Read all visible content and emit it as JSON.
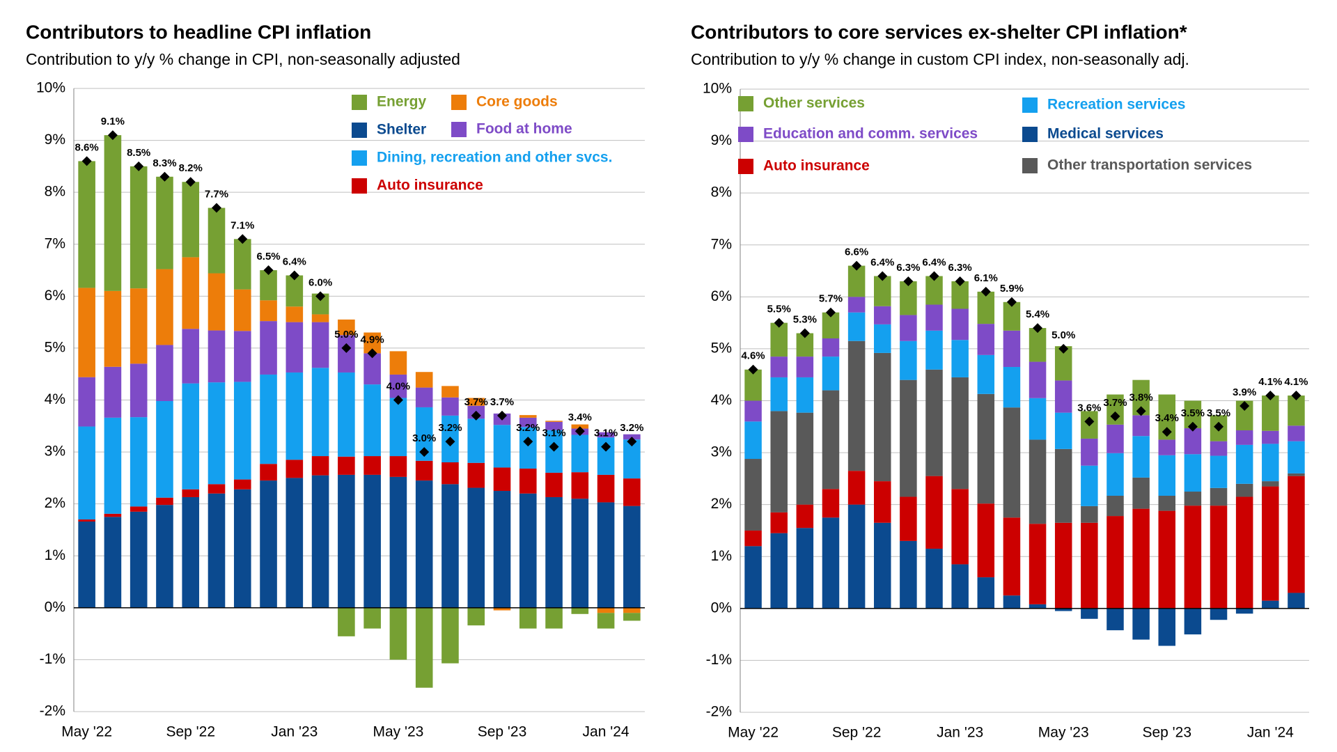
{
  "chart_data": [
    {
      "type": "stacked_bar",
      "title": "Contributors to headline CPI inflation",
      "subtitle": "Contribution to y/y % change in CPI, non-seasonally adjusted",
      "categories": [
        "May '22",
        null,
        null,
        null,
        "Sep '22",
        null,
        null,
        null,
        "Jan '23",
        null,
        null,
        null,
        "May '23",
        null,
        null,
        null,
        "Sep '23",
        null,
        null,
        null,
        "Jan '24",
        null
      ],
      "ylim": [
        -2,
        10
      ],
      "yticks": [
        {
          "value": -2,
          "label": "-2%"
        },
        {
          "value": -1,
          "label": "-1%"
        },
        {
          "value": 0,
          "label": "0%"
        },
        {
          "value": 1,
          "label": "1%"
        },
        {
          "value": 2,
          "label": "2%"
        },
        {
          "value": 3,
          "label": "3%"
        },
        {
          "value": 4,
          "label": "4%"
        },
        {
          "value": 5,
          "label": "5%"
        },
        {
          "value": 6,
          "label": "6%"
        },
        {
          "value": 7,
          "label": "7%"
        },
        {
          "value": 8,
          "label": "8%"
        },
        {
          "value": 9,
          "label": "9%"
        },
        {
          "value": 10,
          "label": "10%"
        }
      ],
      "grid": true,
      "series": [
        {
          "name": "Shelter",
          "color": "#0b4a8f",
          "values": [
            1.66,
            1.75,
            1.85,
            1.98,
            2.13,
            2.2,
            2.28,
            2.45,
            2.5,
            2.55,
            2.56,
            2.56,
            2.52,
            2.45,
            2.38,
            2.31,
            2.25,
            2.2,
            2.13,
            2.1,
            2.03,
            1.96
          ]
        },
        {
          "name": "Auto insurance",
          "color": "#cc0000",
          "values": [
            0.04,
            0.06,
            0.1,
            0.14,
            0.15,
            0.18,
            0.19,
            0.32,
            0.35,
            0.37,
            0.35,
            0.36,
            0.4,
            0.38,
            0.42,
            0.48,
            0.45,
            0.48,
            0.47,
            0.51,
            0.53,
            0.53
          ]
        },
        {
          "name": "Dining, recreation and other svcs.",
          "color": "#14a0ef",
          "values": [
            1.79,
            1.85,
            1.72,
            1.86,
            2.04,
            1.96,
            1.88,
            1.72,
            1.68,
            1.7,
            1.62,
            1.38,
            1.12,
            1.03,
            0.9,
            0.85,
            0.82,
            0.8,
            0.82,
            0.72,
            0.72,
            0.75
          ]
        },
        {
          "name": "Food at home",
          "color": "#7e4bc7",
          "values": [
            0.95,
            0.98,
            1.03,
            1.08,
            1.05,
            1.0,
            0.98,
            1.03,
            0.97,
            0.88,
            0.72,
            0.6,
            0.45,
            0.38,
            0.35,
            0.25,
            0.22,
            0.18,
            0.16,
            0.12,
            0.1,
            0.1
          ]
        },
        {
          "name": "Core goods",
          "color": "#ed7d0a",
          "values": [
            1.72,
            1.46,
            1.45,
            1.46,
            1.38,
            1.1,
            0.8,
            0.4,
            0.3,
            0.15,
            0.3,
            0.4,
            0.45,
            0.3,
            0.22,
            0.15,
            -0.05,
            0.05,
            0.02,
            0.08,
            -0.1,
            -0.1
          ]
        },
        {
          "name": "Energy",
          "color": "#76a033",
          "values": [
            2.44,
            3.0,
            2.35,
            1.78,
            1.45,
            1.26,
            0.97,
            0.58,
            0.6,
            0.4,
            -0.55,
            -0.4,
            -1.0,
            -1.54,
            -1.07,
            -0.34,
            0.0,
            -0.4,
            -0.4,
            -0.12,
            -0.3,
            -0.15
          ]
        }
      ],
      "markers": {
        "values": [
          8.6,
          9.1,
          8.5,
          8.3,
          8.2,
          7.7,
          7.1,
          6.5,
          6.4,
          6.0,
          5.0,
          4.9,
          4.0,
          3.0,
          3.2,
          3.7,
          3.7,
          3.2,
          3.1,
          3.4,
          3.1,
          3.2
        ],
        "value_labels": [
          "8.6%",
          "9.1%",
          "8.5%",
          "8.3%",
          "8.2%",
          "7.7%",
          "7.1%",
          "6.5%",
          "6.4%",
          "6.0%",
          "5.0%",
          "4.9%",
          "4.0%",
          "3.0%",
          "3.2%",
          "3.7%",
          "3.7%",
          "3.2%",
          "3.1%",
          "3.4%",
          "3.1%",
          "3.2%"
        ]
      }
    },
    {
      "type": "stacked_bar",
      "title": "Contributors to core services ex-shelter CPI inflation*",
      "subtitle": "Contribution to y/y % change in custom CPI index, non-seasonally adj.",
      "categories": [
        "May '22",
        null,
        null,
        null,
        "Sep '22",
        null,
        null,
        null,
        "Jan '23",
        null,
        null,
        null,
        "May '23",
        null,
        null,
        null,
        "Sep '23",
        null,
        null,
        null,
        "Jan '24",
        null
      ],
      "ylim": [
        -2,
        10
      ],
      "yticks": [
        {
          "value": -2,
          "label": "-2%"
        },
        {
          "value": -1,
          "label": "-1%"
        },
        {
          "value": 0,
          "label": "0%"
        },
        {
          "value": 1,
          "label": "1%"
        },
        {
          "value": 2,
          "label": "2%"
        },
        {
          "value": 3,
          "label": "3%"
        },
        {
          "value": 4,
          "label": "4%"
        },
        {
          "value": 5,
          "label": "5%"
        },
        {
          "value": 6,
          "label": "6%"
        },
        {
          "value": 7,
          "label": "7%"
        },
        {
          "value": 8,
          "label": "8%"
        },
        {
          "value": 9,
          "label": "9%"
        },
        {
          "value": 10,
          "label": "10%"
        }
      ],
      "grid": true,
      "series": [
        {
          "name": "Medical services",
          "color": "#0b4a8f",
          "values": [
            1.2,
            1.45,
            1.55,
            1.75,
            2.0,
            1.65,
            1.3,
            1.15,
            0.85,
            0.6,
            0.25,
            0.08,
            -0.05,
            -0.2,
            -0.42,
            -0.6,
            -0.72,
            -0.5,
            -0.22,
            -0.1,
            0.15,
            0.3
          ]
        },
        {
          "name": "Auto insurance",
          "color": "#cc0000",
          "values": [
            0.3,
            0.4,
            0.45,
            0.55,
            0.65,
            0.8,
            0.85,
            1.4,
            1.45,
            1.42,
            1.5,
            1.55,
            1.65,
            1.65,
            1.78,
            1.92,
            1.88,
            1.98,
            1.98,
            2.15,
            2.2,
            2.25
          ]
        },
        {
          "name": "Other transportation services",
          "color": "#595959",
          "values": [
            1.38,
            1.95,
            1.77,
            1.9,
            2.5,
            2.47,
            2.25,
            2.05,
            2.15,
            2.11,
            2.12,
            1.62,
            1.42,
            0.32,
            0.39,
            0.6,
            0.29,
            0.27,
            0.34,
            0.25,
            0.1,
            0.05
          ]
        },
        {
          "name": "Recreation services",
          "color": "#14a0ef",
          "values": [
            0.72,
            0.65,
            0.68,
            0.65,
            0.55,
            0.55,
            0.75,
            0.75,
            0.72,
            0.75,
            0.78,
            0.8,
            0.7,
            0.78,
            0.82,
            0.8,
            0.78,
            0.72,
            0.62,
            0.75,
            0.72,
            0.62
          ]
        },
        {
          "name": "Education and comm. services",
          "color": "#7e4bc7",
          "values": [
            0.4,
            0.4,
            0.4,
            0.35,
            0.3,
            0.35,
            0.5,
            0.5,
            0.6,
            0.6,
            0.7,
            0.7,
            0.62,
            0.52,
            0.55,
            0.4,
            0.3,
            0.5,
            0.28,
            0.28,
            0.25,
            0.3
          ]
        },
        {
          "name": "Other services",
          "color": "#76a033",
          "values": [
            0.6,
            0.65,
            0.45,
            0.5,
            0.6,
            0.58,
            0.65,
            0.55,
            0.53,
            0.62,
            0.55,
            0.65,
            0.66,
            0.53,
            0.58,
            0.68,
            0.87,
            0.53,
            0.5,
            0.57,
            0.68,
            0.58
          ]
        }
      ],
      "markers": {
        "values": [
          4.6,
          5.5,
          5.3,
          5.7,
          6.6,
          6.4,
          6.3,
          6.4,
          6.3,
          6.1,
          5.9,
          5.4,
          5.0,
          3.6,
          3.7,
          3.8,
          3.4,
          3.5,
          3.5,
          3.9,
          4.1,
          4.1
        ],
        "value_labels": [
          "4.6%",
          "5.5%",
          "5.3%",
          "5.7%",
          "6.6%",
          "6.4%",
          "6.3%",
          "6.4%",
          "6.3%",
          "6.1%",
          "5.9%",
          "5.4%",
          "5.0%",
          "3.6%",
          "3.7%",
          "3.8%",
          "3.4%",
          "3.5%",
          "3.5%",
          "3.9%",
          "4.1%",
          "4.1%"
        ]
      }
    }
  ]
}
